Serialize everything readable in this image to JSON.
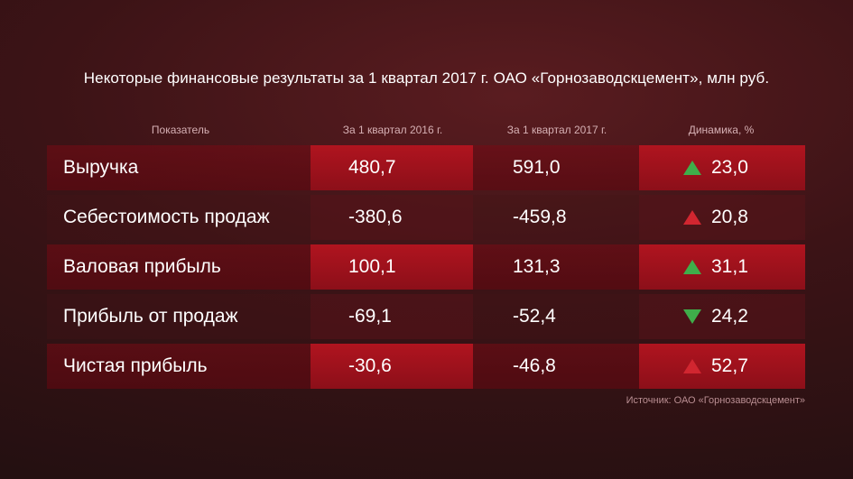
{
  "chart_data": {
    "type": "table",
    "title": "Некоторые финансовые результаты за 1 квартал 2017 г. ОАО «Горнозаводскцемент», млн руб.",
    "columns": [
      "Показатель",
      "За 1 квартал 2016 г.",
      "За 1 квартал 2017 г.",
      "Динамика, %"
    ],
    "rows": [
      {
        "name": "Выручка",
        "v2016": "480,7",
        "v2017": "591,0",
        "dynamics": "23,0",
        "arrow": "up",
        "arrow_color": "#3fae4a"
      },
      {
        "name": "Себестоимость продаж",
        "v2016": "-380,6",
        "v2017": "-459,8",
        "dynamics": "20,8",
        "arrow": "up",
        "arrow_color": "#d12630"
      },
      {
        "name": "Валовая прибыль",
        "v2016": "100,1",
        "v2017": "131,3",
        "dynamics": "31,1",
        "arrow": "up",
        "arrow_color": "#3fae4a"
      },
      {
        "name": "Прибыль от продаж",
        "v2016": "-69,1",
        "v2017": "-52,4",
        "dynamics": "24,2",
        "arrow": "down",
        "arrow_color": "#3fae4a"
      },
      {
        "name": "Чистая прибыль",
        "v2016": "-30,6",
        "v2017": "-46,8",
        "dynamics": "52,7",
        "arrow": "up",
        "arrow_color": "#d12630"
      }
    ],
    "source": "Источник: ОАО «Горнозаводскцемент»"
  }
}
